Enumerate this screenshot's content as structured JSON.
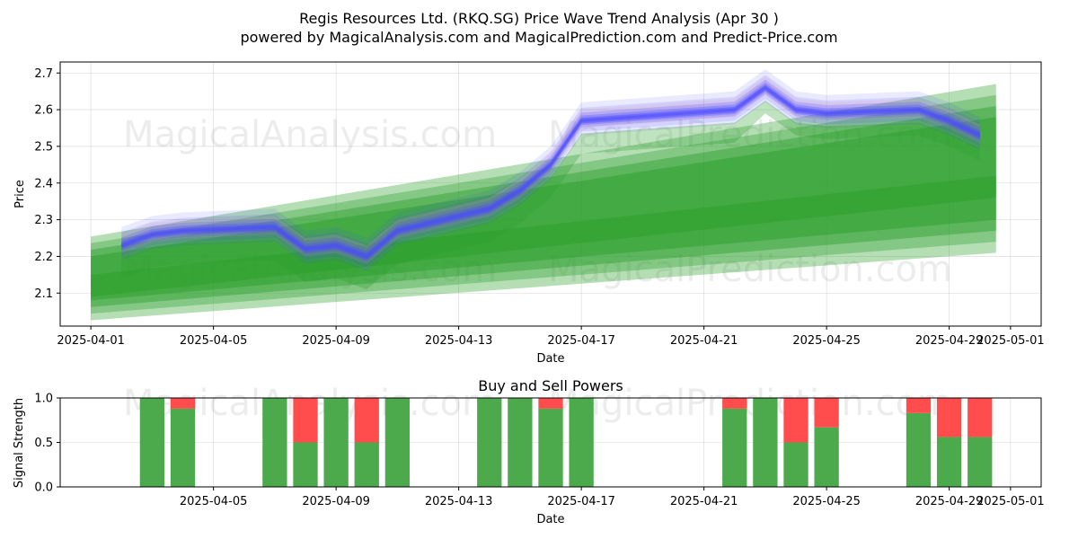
{
  "title_line1": "Regis Resources Ltd. (RKQ.SG) Price Wave Trend Analysis (Apr 30 )",
  "title_line2": "powered by MagicalAnalysis.com and MagicalPrediction.com and Predict-Price.com",
  "watermarks": [
    "MagicalAnalysis.com",
    "MagicalPrediction.com"
  ],
  "colors": {
    "green": "#2ca02c",
    "blue": "#4a4aff",
    "pink": "#e29ab0",
    "buy": "#4caa4c",
    "sell": "#ff4d4d"
  },
  "chart_data": [
    {
      "type": "area",
      "title": "",
      "xlabel": "Date",
      "ylabel": "Price",
      "ylim": [
        2.01,
        2.73
      ],
      "xlim": [
        "2025-03-31",
        "2025-05-02"
      ],
      "x_ticks": [
        "2025-04-01",
        "2025-04-05",
        "2025-04-09",
        "2025-04-13",
        "2025-04-17",
        "2025-04-21",
        "2025-04-25",
        "2025-04-29",
        "2025-05-01"
      ],
      "y_ticks": [
        2.1,
        2.2,
        2.3,
        2.4,
        2.5,
        2.6,
        2.7
      ],
      "grid": true,
      "series": [
        {
          "kind": "price-wave-band",
          "x": [
            "2025-04-02",
            "2025-04-03",
            "2025-04-04",
            "2025-04-07",
            "2025-04-08",
            "2025-04-09",
            "2025-04-10",
            "2025-04-11",
            "2025-04-14",
            "2025-04-15",
            "2025-04-16",
            "2025-04-17",
            "2025-04-22",
            "2025-04-23",
            "2025-04-24",
            "2025-04-25",
            "2025-04-28",
            "2025-04-29",
            "2025-04-30"
          ],
          "y": [
            2.23,
            2.26,
            2.27,
            2.28,
            2.22,
            2.23,
            2.2,
            2.27,
            2.33,
            2.38,
            2.45,
            2.57,
            2.6,
            2.66,
            2.6,
            2.59,
            2.6,
            2.57,
            2.53
          ]
        },
        {
          "kind": "trend-band",
          "x": [
            "2025-04-01",
            "2025-04-30"
          ],
          "lower": [
            2.08,
            2.3
          ],
          "upper": [
            2.2,
            2.58
          ]
        }
      ]
    },
    {
      "type": "bar",
      "title": "Buy and Sell Powers",
      "xlabel": "Date",
      "ylabel": "Signal Strength",
      "ylim": [
        0,
        1
      ],
      "y_ticks": [
        0.0,
        0.5,
        1.0
      ],
      "x_ticks": [
        "2025-04-05",
        "2025-04-09",
        "2025-04-13",
        "2025-04-17",
        "2025-04-21",
        "2025-04-25",
        "2025-04-29",
        "2025-05-01"
      ],
      "x": [
        "2025-04-03",
        "2025-04-04",
        "2025-04-07",
        "2025-04-08",
        "2025-04-09",
        "2025-04-10",
        "2025-04-11",
        "2025-04-14",
        "2025-04-15",
        "2025-04-16",
        "2025-04-17",
        "2025-04-22",
        "2025-04-23",
        "2025-04-24",
        "2025-04-25",
        "2025-04-28",
        "2025-04-29",
        "2025-04-30"
      ],
      "buy": [
        1.0,
        0.88,
        1.0,
        0.5,
        1.0,
        0.5,
        1.0,
        1.0,
        1.0,
        0.88,
        1.0,
        0.88,
        1.0,
        0.5,
        0.67,
        0.83,
        0.56,
        0.56
      ]
    }
  ]
}
